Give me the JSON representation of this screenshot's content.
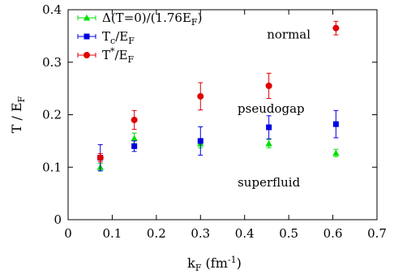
{
  "chart_data": {
    "type": "scatter",
    "xlabel": {
      "base": "k",
      "sub": "F",
      "rest": "  (fm",
      "sup": "-1",
      "close": ")"
    },
    "ylabel": {
      "base": "T / E",
      "sub": "F"
    },
    "xlim": [
      0,
      0.7
    ],
    "ylim": [
      0,
      0.4
    ],
    "xticks": [
      "0",
      "0.1",
      "0.2",
      "0.3",
      "0.4",
      "0.5",
      "0.6",
      "0.7"
    ],
    "yticks": [
      "0",
      "0.1",
      "0.2",
      "0.3",
      "0.4"
    ],
    "legend_position": "top-left",
    "grid": false,
    "annotations": [
      {
        "text": "normal",
        "x": 0.5,
        "y": 0.345
      },
      {
        "text": "pseudogap",
        "x": 0.46,
        "y": 0.204
      },
      {
        "text": "superfluid",
        "x": 0.455,
        "y": 0.063
      }
    ],
    "series": [
      {
        "name": "Δ(T=0)/(1.76E",
        "name_sub": "F",
        "name_end": ")",
        "color": "#00e000",
        "marker": "triangle",
        "points": [
          {
            "x": 0.073,
            "y": 0.1,
            "err": 0.007
          },
          {
            "x": 0.15,
            "y": 0.155,
            "err": 0.01
          },
          {
            "x": 0.3,
            "y": 0.145,
            "err": 0.008
          },
          {
            "x": 0.455,
            "y": 0.145,
            "err": 0.008
          },
          {
            "x": 0.607,
            "y": 0.127,
            "err": 0.007
          }
        ]
      },
      {
        "name": "T",
        "name_sub": "c",
        "name_end": "/E",
        "name_sub2": "F",
        "color": "#0000e0",
        "marker": "square",
        "points": [
          {
            "x": 0.073,
            "y": 0.118,
            "err": 0.025
          },
          {
            "x": 0.15,
            "y": 0.14,
            "err": 0.01
          },
          {
            "x": 0.3,
            "y": 0.15,
            "err": 0.027
          },
          {
            "x": 0.455,
            "y": 0.176,
            "err": 0.022
          },
          {
            "x": 0.607,
            "y": 0.182,
            "err": 0.026
          }
        ]
      },
      {
        "name": "T",
        "name_sup": "*",
        "name_end": "/E",
        "name_sub2": "F",
        "color": "#e00000",
        "marker": "circle",
        "points": [
          {
            "x": 0.073,
            "y": 0.118,
            "err": 0.008
          },
          {
            "x": 0.15,
            "y": 0.19,
            "err": 0.018
          },
          {
            "x": 0.3,
            "y": 0.235,
            "err": 0.026
          },
          {
            "x": 0.455,
            "y": 0.255,
            "err": 0.024
          },
          {
            "x": 0.607,
            "y": 0.365,
            "err": 0.013
          }
        ]
      }
    ]
  }
}
